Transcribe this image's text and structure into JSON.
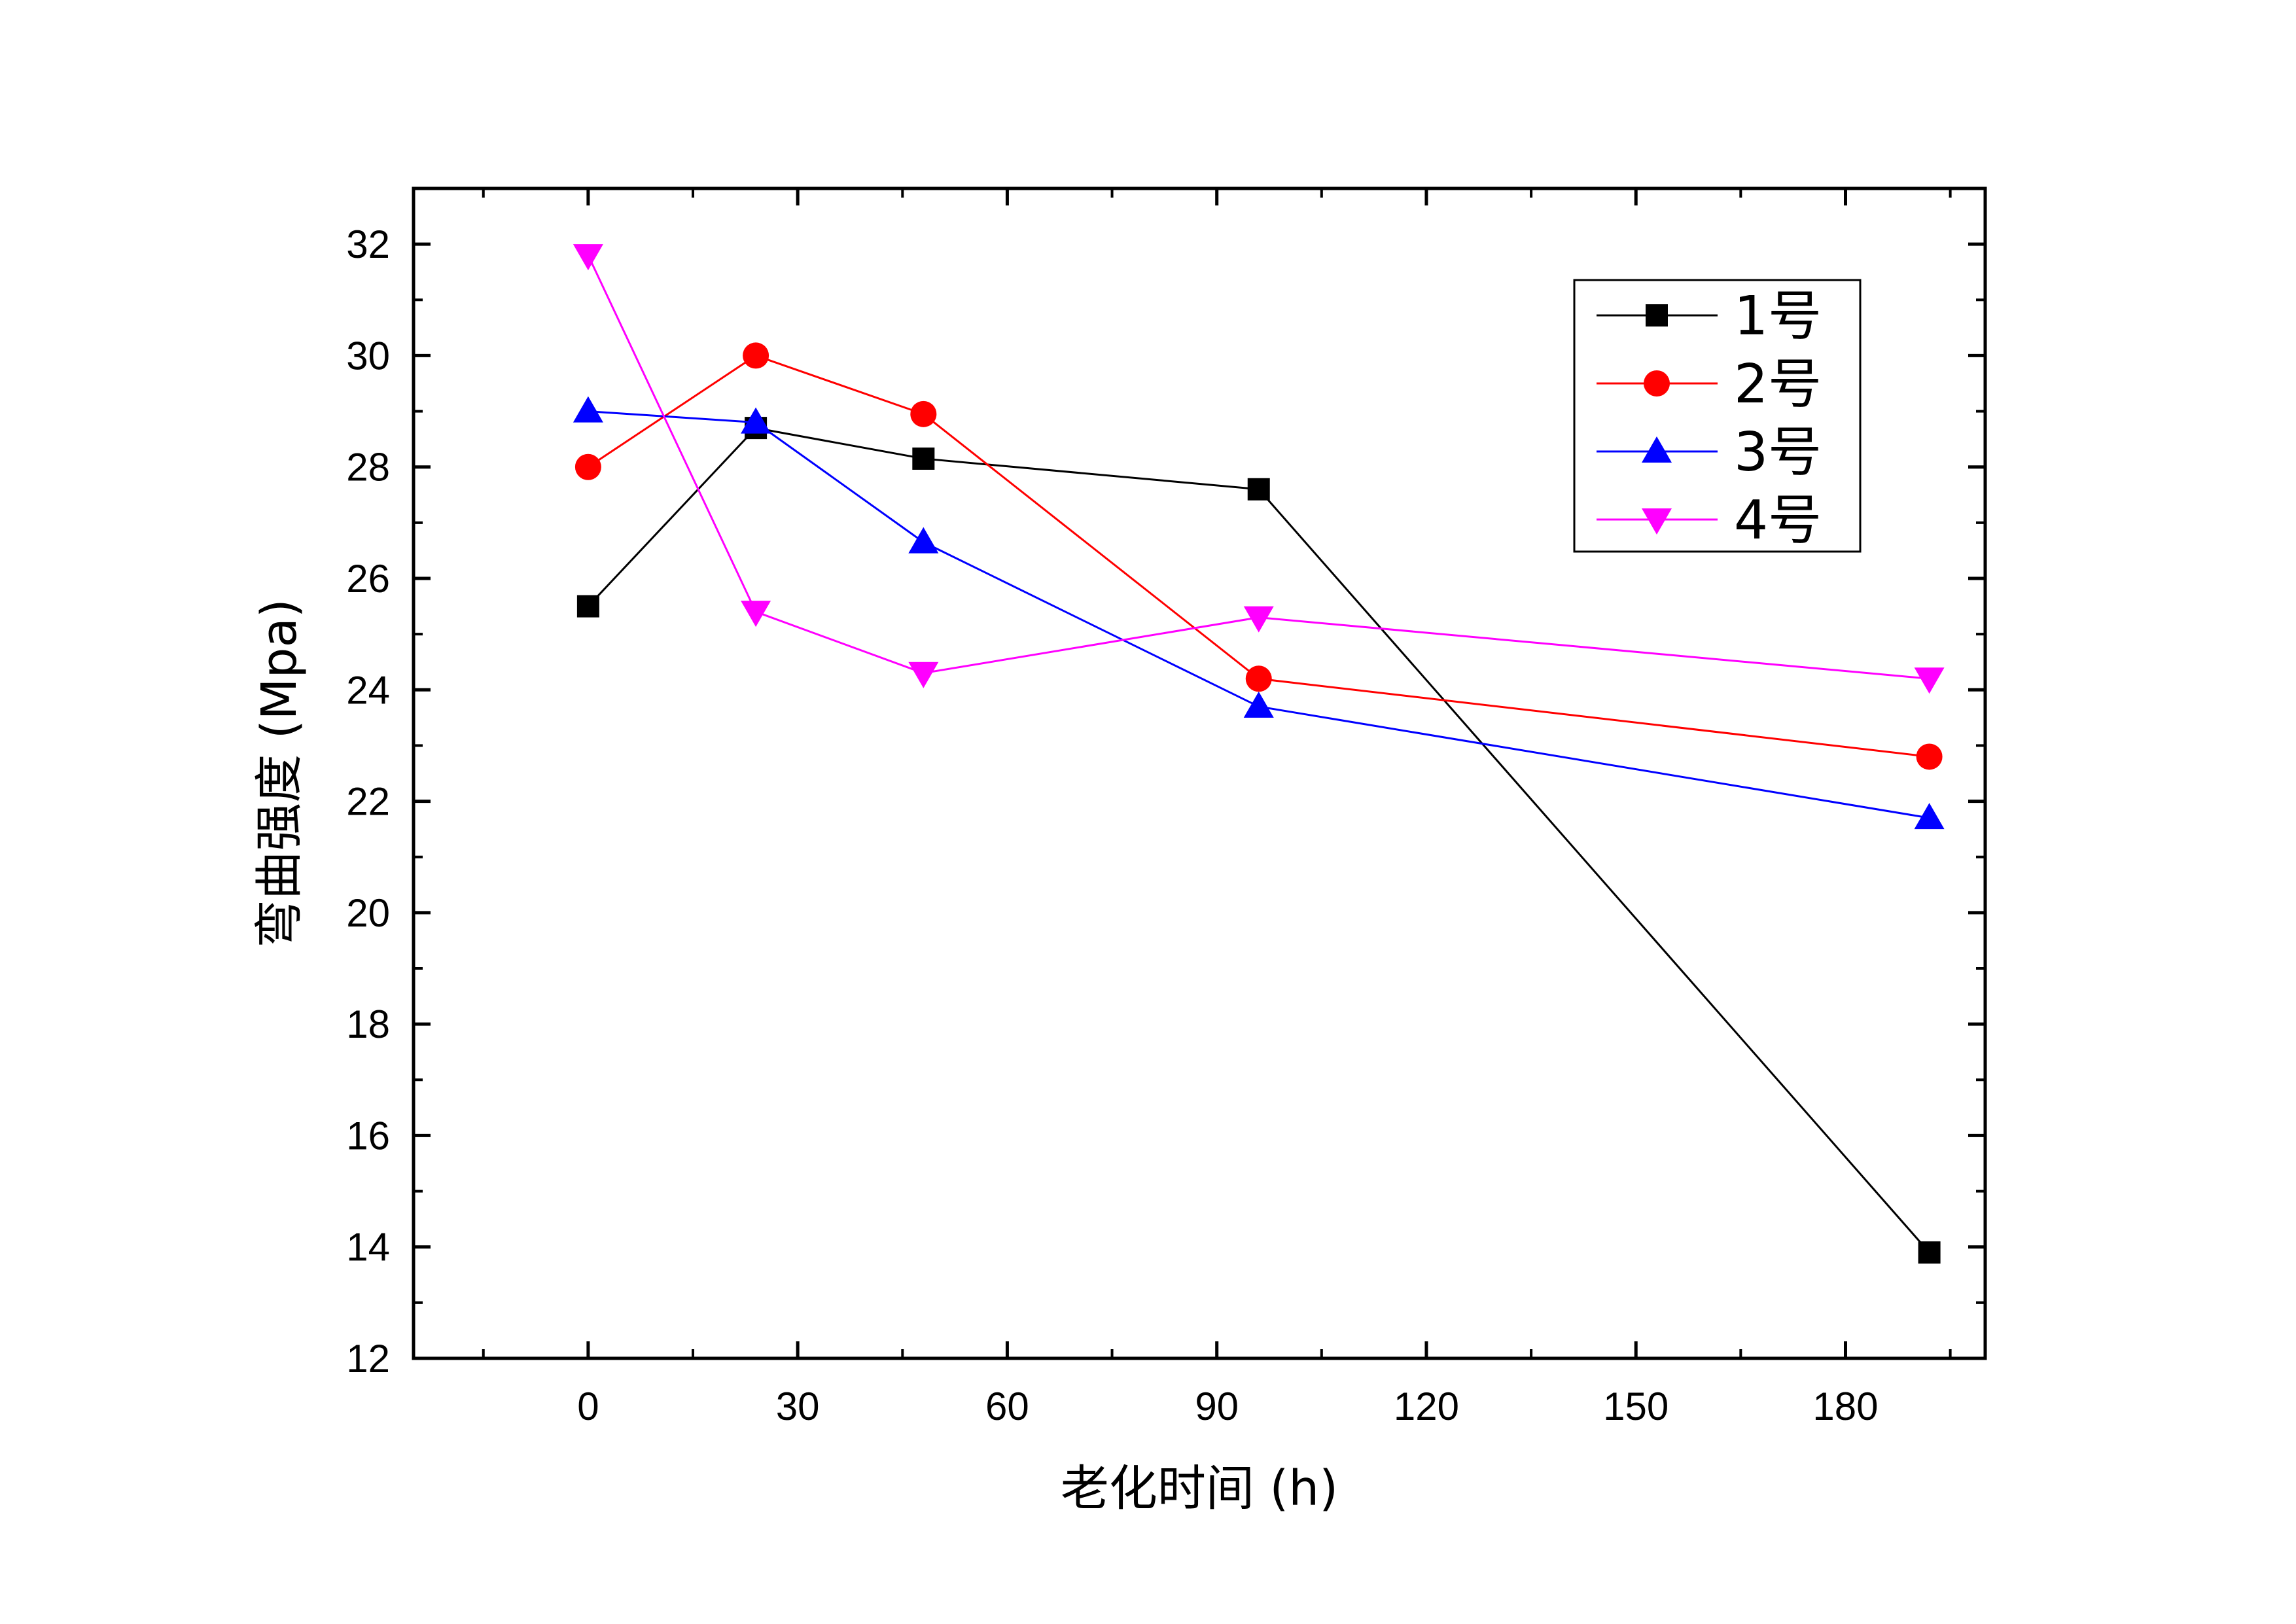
{
  "chart_data": {
    "type": "line",
    "title": "",
    "xlabel": "老化时间 (h)",
    "ylabel": "弯曲强度 (Mpa)",
    "xlim": [
      -25,
      200
    ],
    "ylim": [
      12,
      33
    ],
    "xticks": [
      0,
      30,
      60,
      90,
      120,
      150,
      180
    ],
    "yticks": [
      12,
      14,
      16,
      18,
      20,
      22,
      24,
      26,
      28,
      30,
      32
    ],
    "x": [
      0,
      24,
      48,
      96,
      192
    ],
    "grid": false,
    "legend_position": "top-right",
    "series": [
      {
        "name": "1号",
        "color": "#000000",
        "marker": "square",
        "values": [
          25.5,
          28.7,
          28.15,
          27.6,
          13.9
        ]
      },
      {
        "name": "2号",
        "color": "#ff0000",
        "marker": "circle",
        "values": [
          28.0,
          30.0,
          28.95,
          24.2,
          22.8
        ]
      },
      {
        "name": "3号",
        "color": "#0000ff",
        "marker": "triangle-up",
        "values": [
          29.0,
          28.8,
          26.65,
          23.7,
          21.7
        ]
      },
      {
        "name": "4号",
        "color": "#ff00ff",
        "marker": "triangle-down",
        "values": [
          31.8,
          25.4,
          24.3,
          25.3,
          24.2
        ]
      }
    ]
  }
}
